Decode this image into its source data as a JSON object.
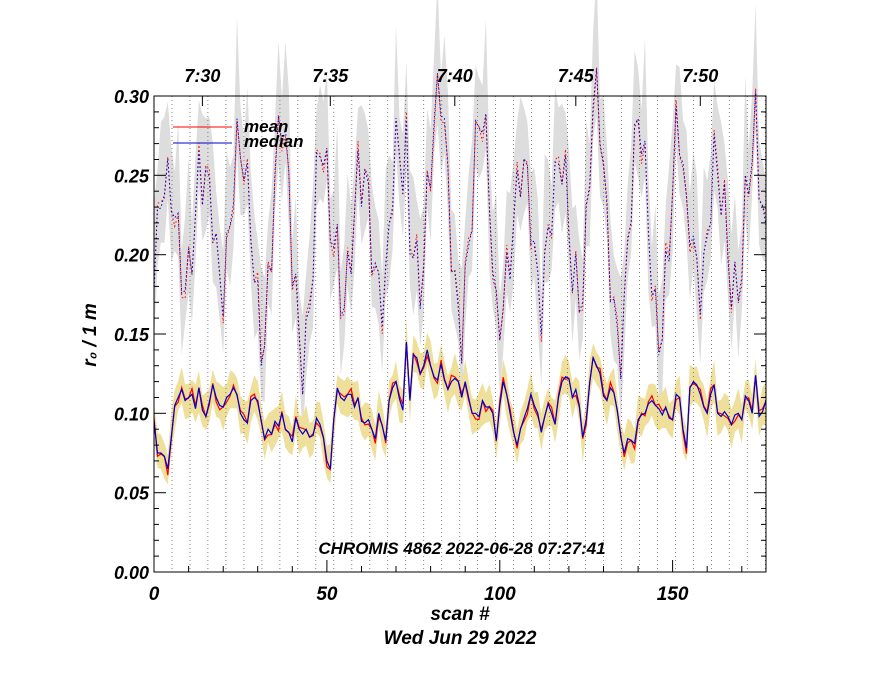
{
  "chart_data": {
    "type": "line",
    "ylabel": "r₀ / 1 m",
    "xlabel": "scan #",
    "date_label": "Wed Jun 29 2022",
    "annotation": "CHROMIS 4862 2022-06-28 07:27:41",
    "xlim": [
      0,
      177
    ],
    "ylim": [
      0.0,
      0.3
    ],
    "x_ticks": [
      0,
      50,
      100,
      150
    ],
    "x_tick_labels": [
      "0",
      "50",
      "100",
      "150"
    ],
    "y_ticks": [
      0.0,
      0.05,
      0.1,
      0.15,
      0.2,
      0.25,
      0.3
    ],
    "y_tick_labels": [
      "0.00",
      "0.05",
      "0.10",
      "0.15",
      "0.20",
      "0.25",
      "0.30"
    ],
    "top_axis": {
      "label_scans": [
        14,
        51,
        87,
        122,
        158
      ],
      "labels": [
        "7:30",
        "7:35",
        "7:40",
        "7:45",
        "7:50"
      ]
    },
    "vertical_marker_spacing_scans": 5.2,
    "legend": [
      {
        "name": "mean",
        "color": "#ff0000"
      },
      {
        "name": "median",
        "color": "#0000cc"
      }
    ],
    "colors": {
      "mean": "#ff0000",
      "median": "#0000cc",
      "lower_band": "#eedf9a",
      "upper_band": "#dddddd",
      "grid": "#666666"
    },
    "series_low_median": [
      0.095,
      0.075,
      0.075,
      0.073,
      0.065,
      0.085,
      0.105,
      0.11,
      0.115,
      0.108,
      0.11,
      0.112,
      0.103,
      0.116,
      0.102,
      0.098,
      0.107,
      0.118,
      0.11,
      0.105,
      0.104,
      0.11,
      0.112,
      0.116,
      0.112,
      0.1,
      0.096,
      0.094,
      0.108,
      0.11,
      0.108,
      0.095,
      0.084,
      0.09,
      0.087,
      0.095,
      0.092,
      0.1,
      0.09,
      0.088,
      0.082,
      0.097,
      0.09,
      0.087,
      0.09,
      0.085,
      0.086,
      0.097,
      0.093,
      0.085,
      0.07,
      0.065,
      0.096,
      0.116,
      0.11,
      0.108,
      0.112,
      0.112,
      0.104,
      0.11,
      0.095,
      0.094,
      0.096,
      0.09,
      0.084,
      0.1,
      0.092,
      0.083,
      0.108,
      0.116,
      0.12,
      0.109,
      0.102,
      0.145,
      0.108,
      0.137,
      0.135,
      0.125,
      0.13,
      0.14,
      0.13,
      0.123,
      0.121,
      0.131,
      0.121,
      0.115,
      0.12,
      0.122,
      0.12,
      0.11,
      0.12,
      0.11,
      0.1,
      0.1,
      0.098,
      0.108,
      0.104,
      0.104,
      0.1,
      0.083,
      0.105,
      0.12,
      0.112,
      0.1,
      0.088,
      0.08,
      0.09,
      0.097,
      0.103,
      0.112,
      0.105,
      0.1,
      0.088,
      0.098,
      0.106,
      0.1,
      0.093,
      0.11,
      0.12,
      0.123,
      0.122,
      0.11,
      0.115,
      0.105,
      0.085,
      0.096,
      0.119,
      0.135,
      0.13,
      0.125,
      0.111,
      0.108,
      0.116,
      0.113,
      0.102,
      0.085,
      0.075,
      0.084,
      0.083,
      0.081,
      0.096,
      0.099,
      0.1,
      0.106,
      0.108,
      0.105,
      0.103,
      0.099,
      0.104,
      0.097,
      0.096,
      0.112,
      0.11,
      0.09,
      0.078,
      0.116,
      0.12,
      0.118,
      0.112,
      0.104,
      0.1,
      0.112,
      0.118,
      0.1,
      0.098,
      0.101,
      0.098,
      0.093,
      0.099,
      0.1,
      0.096,
      0.111,
      0.108,
      0.1,
      0.124,
      0.098,
      0.101,
      0.108
    ]
  }
}
